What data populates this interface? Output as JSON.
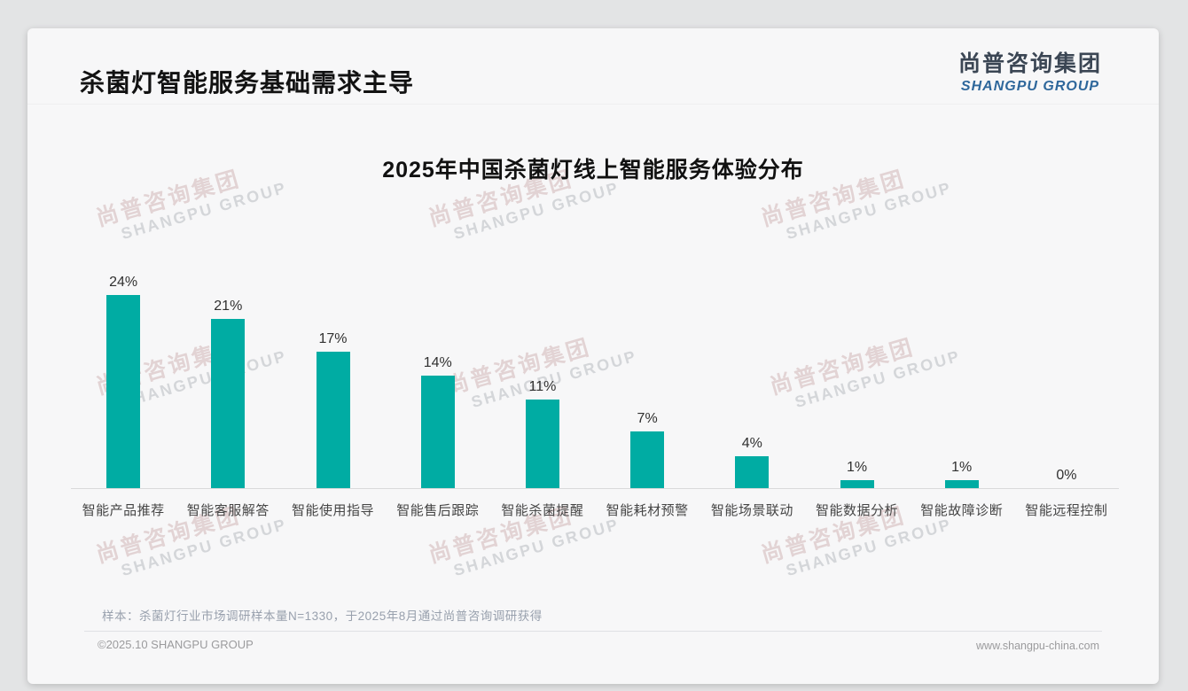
{
  "page": {
    "slide_title": "杀菌灯智能服务基础需求主导",
    "logo": {
      "cn": "尚普咨询集团",
      "en": "SHANGPU GROUP"
    },
    "watermark": {
      "cn": "尚普咨询集团",
      "en": "SHANGPU GROUP"
    },
    "note": "样本：杀菌灯行业市场调研样本量N=1330，于2025年8月通过尚普咨询调研获得",
    "footer_left": "©2025.10 SHANGPU GROUP",
    "footer_right": "www.shangpu-china.com"
  },
  "chart_data": {
    "type": "bar",
    "title": "2025年中国杀菌灯线上智能服务体验分布",
    "categories": [
      "智能产品推荐",
      "智能客服解答",
      "智能使用指导",
      "智能售后跟踪",
      "智能杀菌提醒",
      "智能耗材预警",
      "智能场景联动",
      "智能数据分析",
      "智能故障诊断",
      "智能远程控制"
    ],
    "values": [
      24,
      21,
      17,
      14,
      11,
      7,
      4,
      1,
      1,
      0
    ],
    "value_labels": [
      "24%",
      "21%",
      "17%",
      "14%",
      "11%",
      "7%",
      "4%",
      "1%",
      "1%",
      "0%"
    ],
    "xlabel": "",
    "ylabel": "",
    "ylim": [
      0,
      25
    ],
    "grid": false,
    "legend": "none",
    "bar_color": "#00aca3"
  },
  "colors": {
    "bar": "#00aca3",
    "page_background": "#e3e4e5",
    "card_background": "#f7f7f8",
    "logo_blue": "#2e679b",
    "note_gray": "#98a0ad"
  }
}
